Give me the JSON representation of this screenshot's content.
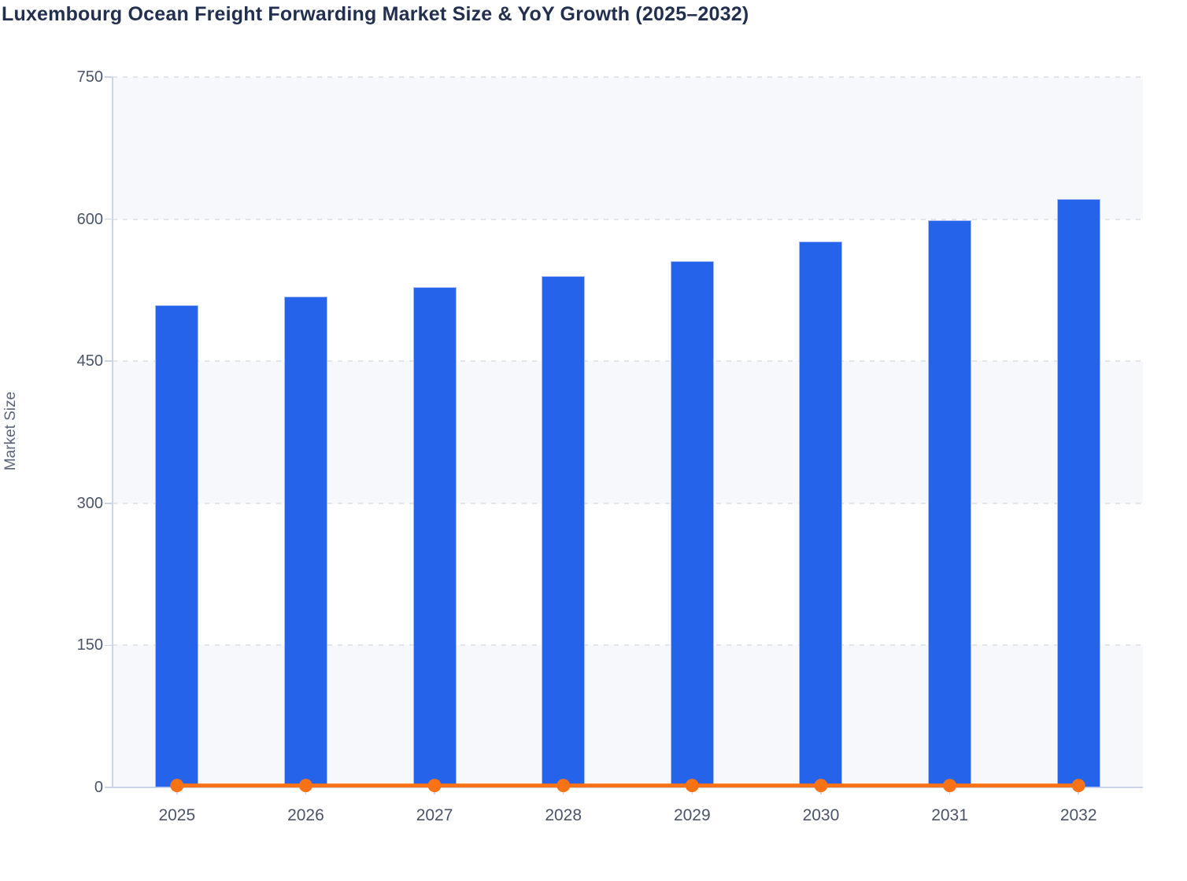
{
  "header": {
    "title": "Luxembourg Ocean Freight Forwarding Market Size & YoY Growth (2025–2032)"
  },
  "chart_data": {
    "type": "bar",
    "title": "Luxembourg Ocean Freight Forwarding Market Size & YoY Growth (2025–2032)",
    "categories": [
      "2025",
      "2026",
      "2027",
      "2028",
      "2029",
      "2030",
      "2031",
      "2032"
    ],
    "series": [
      {
        "name": "Market Size",
        "type": "bar",
        "color": "#2563eb",
        "border_color": "#aabdf2",
        "values": [
          509,
          518,
          528,
          540,
          556,
          576,
          599,
          621
        ]
      },
      {
        "name": "YoY Growth",
        "type": "line",
        "color": "#f97316",
        "marker": "circle",
        "values": [
          2,
          2,
          2,
          2,
          2,
          2,
          2,
          2
        ],
        "appearance": "flat line with round markers hugging the zero baseline"
      }
    ],
    "xlabel": "",
    "ylabel": "Market Size",
    "ylim": [
      0,
      750
    ],
    "yticks": [
      0,
      150,
      300,
      450,
      600,
      750
    ],
    "grid": "horizontal dashed gridlines at each 150",
    "plot_bands": "alternating light horizontal bands between gridlines",
    "legend": "none",
    "colors": {
      "band_fill": "#f7f8fb",
      "gridline": "#e2e5ea",
      "axis_line": "#ccd6eb",
      "title_text": "#22304f",
      "tick_text": "#4b5468",
      "axis_title_text": "#5b6478",
      "background": "#ffffff"
    }
  }
}
